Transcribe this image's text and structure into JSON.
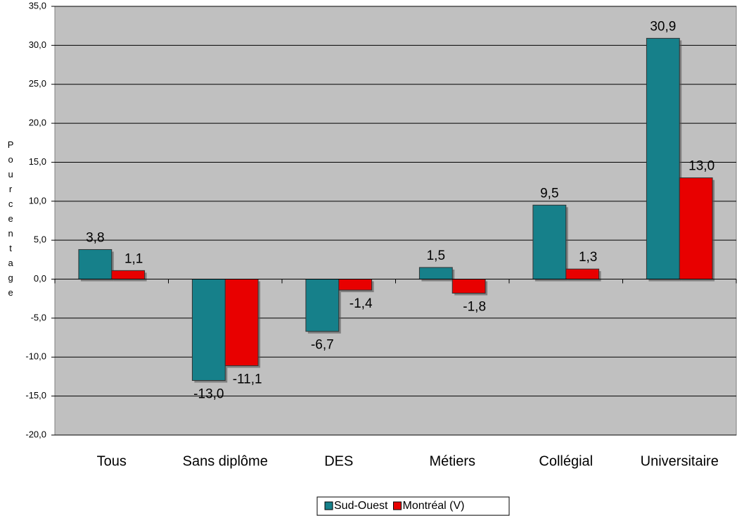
{
  "chart_data": {
    "type": "bar",
    "y_axis_label": "Pourcentage",
    "categories": [
      "Tous",
      "Sans diplôme",
      "DES",
      "Métiers",
      "Collégial",
      "Universitaire"
    ],
    "series": [
      {
        "name": "Sud-Ouest",
        "color": "#16808a",
        "values": [
          3.8,
          -13.0,
          -6.7,
          1.5,
          9.5,
          30.9
        ],
        "value_labels": [
          "3,8",
          "-13,0",
          "-6,7",
          "1,5",
          "9,5",
          "30,9"
        ]
      },
      {
        "name": "Montréal (V)",
        "color": "#e80000",
        "values": [
          1.1,
          -11.1,
          -1.4,
          -1.8,
          1.3,
          13.0
        ],
        "value_labels": [
          "1,1",
          "-11,1",
          "-1,4",
          "-1,8",
          "1,3",
          "13,0"
        ]
      }
    ],
    "ylim": [
      -20,
      35
    ],
    "yticks": [
      {
        "value": -20,
        "label": "-20,0"
      },
      {
        "value": -15,
        "label": "-15,0"
      },
      {
        "value": -10,
        "label": "-10,0"
      },
      {
        "value": -5,
        "label": "-5,0"
      },
      {
        "value": 0,
        "label": "0,0"
      },
      {
        "value": 5,
        "label": "5,0"
      },
      {
        "value": 10,
        "label": "10,0"
      },
      {
        "value": 15,
        "label": "15,0"
      },
      {
        "value": 20,
        "label": "20,0"
      },
      {
        "value": 25,
        "label": "25,0"
      },
      {
        "value": 30,
        "label": "30,0"
      },
      {
        "value": 35,
        "label": "35,0"
      }
    ],
    "grid": true,
    "legend": "bottom"
  }
}
